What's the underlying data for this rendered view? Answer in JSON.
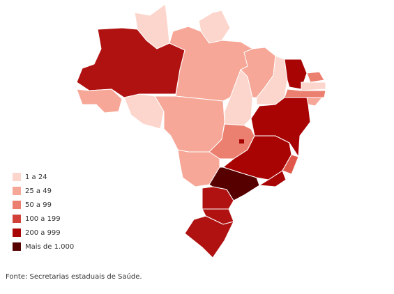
{
  "legend": {
    "items": [
      {
        "label": "1 a 24",
        "color": "#fcd6cc"
      },
      {
        "label": "25 a 49",
        "color": "#f6a797"
      },
      {
        "label": "50 a 99",
        "color": "#ec8070"
      },
      {
        "label": "100 a 199",
        "color": "#d2403a"
      },
      {
        "label": "200 a 999",
        "color": "#a80404"
      },
      {
        "label": "Mais de 1.000",
        "color": "#560000"
      }
    ]
  },
  "source": "Fonte: Secretarias estaduais de Saúde."
}
